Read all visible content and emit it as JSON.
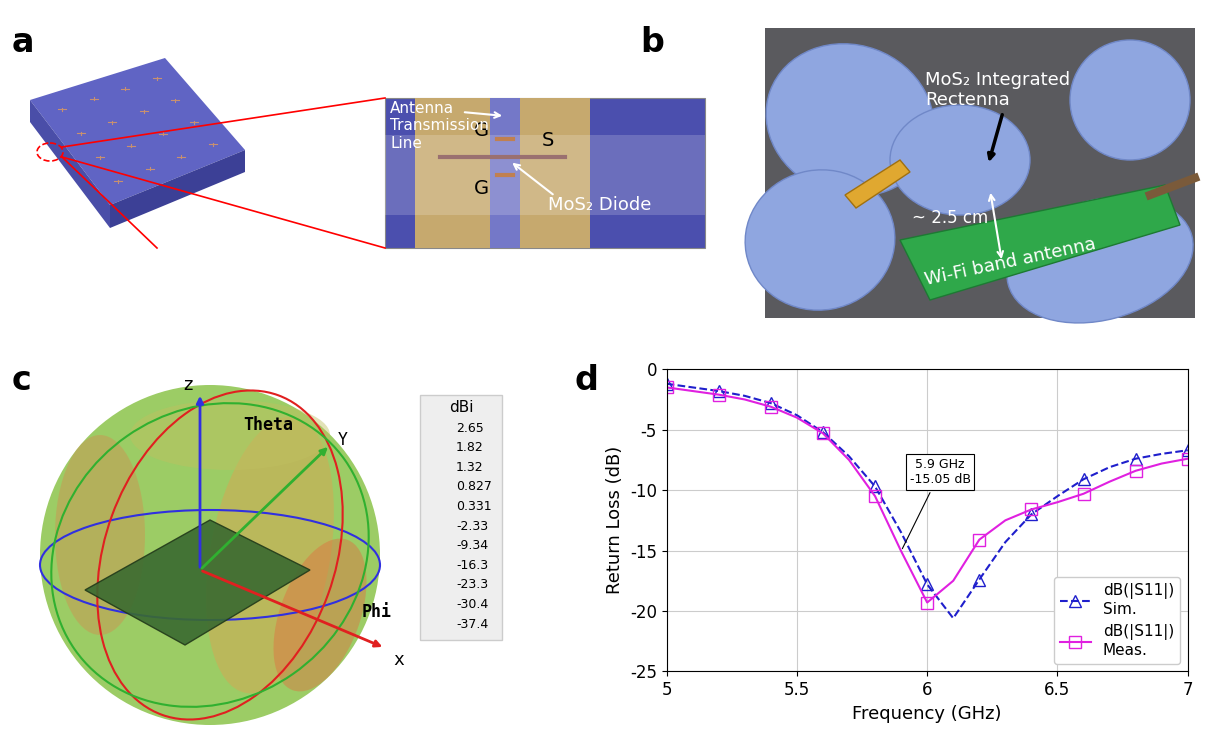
{
  "panel_labels": [
    "a",
    "b",
    "c",
    "d"
  ],
  "schematic": {
    "transmission_line_label": "Antenna\nTransmission\nLine",
    "diode_label": "MoS₂ Diode",
    "gate_label": "G",
    "source_label": "S"
  },
  "photo": {
    "rectenna_label": "MoS₂ Integrated\nRectenna",
    "distance_label": "~ 2.5 cm",
    "antenna_label": "Wi-Fi band antenna"
  },
  "radiation_pattern": {
    "axis_labels": {
      "z": "z",
      "theta": "Theta",
      "y": "Y",
      "phi": "Phi",
      "x": "x"
    },
    "colorbar_title": "dBi",
    "colorbar_ticks": [
      "2.65",
      "1.82",
      "1.32",
      "0.827",
      "0.331",
      "-2.33",
      "-9.34",
      "-16.3",
      "-23.3",
      "-30.4",
      "-37.4"
    ]
  },
  "chart_data": {
    "type": "line",
    "xlabel": "Frequency (GHz)",
    "ylabel": "Return Loss (dB)",
    "x": [
      5.0,
      5.1,
      5.2,
      5.3,
      5.4,
      5.5,
      5.6,
      5.7,
      5.8,
      5.9,
      6.0,
      6.1,
      6.2,
      6.3,
      6.4,
      6.5,
      6.6,
      6.7,
      6.8,
      6.9,
      7.0
    ],
    "series": [
      {
        "name": "dB(|S11|)\nSim.",
        "color": "#1f1fcc",
        "marker": "triangle",
        "line_style": "dashed",
        "values": [
          -1.2,
          -1.5,
          -1.8,
          -2.2,
          -2.8,
          -3.8,
          -5.2,
          -7.2,
          -9.7,
          -13.5,
          -17.8,
          -20.6,
          -17.4,
          -14.3,
          -12.0,
          -10.5,
          -9.1,
          -8.1,
          -7.4,
          -7.0,
          -6.7
        ]
      },
      {
        "name": "dB(|S11|)\nMeas.",
        "color": "#e020e0",
        "marker": "square",
        "line_style": "solid",
        "values": [
          -1.5,
          -1.8,
          -2.1,
          -2.5,
          -3.1,
          -4.0,
          -5.3,
          -7.5,
          -10.5,
          -15.05,
          -19.3,
          -17.5,
          -14.1,
          -12.5,
          -11.6,
          -11.0,
          -10.3,
          -9.3,
          -8.4,
          -7.8,
          -7.4
        ]
      }
    ],
    "annotation": {
      "text": "5.9 GHz\n-15.05 dB",
      "x": 5.9,
      "y": -15.05
    },
    "xlim": [
      5,
      7
    ],
    "ylim": [
      -25,
      0
    ],
    "xticks": [
      5,
      5.5,
      6,
      6.5,
      7
    ],
    "yticks": [
      -25,
      -20,
      -15,
      -10,
      -5,
      0
    ],
    "grid": true,
    "legend": "lower right"
  }
}
